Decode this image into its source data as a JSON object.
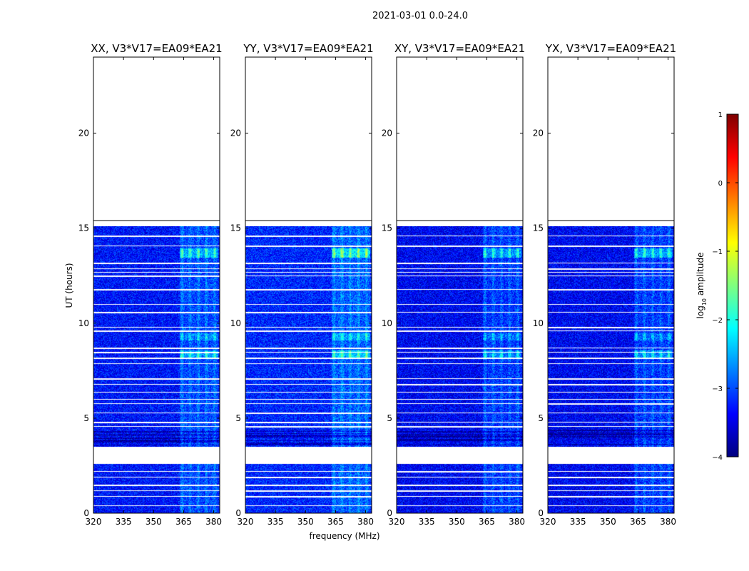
{
  "figure": {
    "suptitle": "2021-03-01 0.0-24.0",
    "xlabel": "frequency (MHz)",
    "ylabel": "UT (hours)"
  },
  "colorbar": {
    "label": "log",
    "label_sub": "10",
    "label_rest": " amplitude",
    "ticks": [
      1,
      0,
      -1,
      -2,
      -3,
      -4
    ],
    "tick_labels": [
      "1",
      "0",
      "−1",
      "−2",
      "−3",
      "−4"
    ],
    "range": [
      -4,
      1
    ],
    "colormap": "jet",
    "colors": [
      "#00007f",
      "#0000ff",
      "#007fff",
      "#00ffff",
      "#7fff7f",
      "#ffff00",
      "#ff7f00",
      "#ff0000",
      "#7f0000"
    ]
  },
  "chart_data": [
    {
      "type": "heatmap",
      "title": "XX, V3*V17=EA09*EA21",
      "xlabel": "frequency (MHz)",
      "ylabel": "UT (hours)",
      "xlim": [
        320,
        383
      ],
      "ylim": [
        0,
        24
      ],
      "xticks": [
        320,
        335,
        350,
        365,
        380
      ],
      "yticks": [
        0,
        5,
        10,
        15,
        20
      ],
      "data_hours": [
        [
          0,
          2.6
        ],
        [
          3.5,
          15.1
        ]
      ],
      "flagged_rows_hours": [
        0.4,
        0.9,
        1.2,
        1.5,
        1.9,
        2.2,
        3.3,
        4.6,
        4.8,
        5.3,
        5.8,
        6.0,
        6.4,
        6.8,
        7.1,
        7.9,
        8.2,
        8.5,
        8.7,
        9.6,
        9.8,
        10.6,
        11.0,
        11.8,
        12.5,
        12.7,
        12.9,
        13.2,
        14.1,
        14.6
      ],
      "rfi_band_mhz": [
        363,
        382
      ],
      "rfi_peak_log_amplitude": -1.5,
      "background_log_amplitude": -3.3
    },
    {
      "type": "heatmap",
      "title": "YY, V3*V17=EA09*EA21",
      "xlabel": "frequency (MHz)",
      "ylabel": "UT (hours)",
      "xlim": [
        320,
        383
      ],
      "ylim": [
        0,
        24
      ],
      "xticks": [
        320,
        335,
        350,
        365,
        380
      ],
      "yticks": [
        0,
        5,
        10,
        15,
        20
      ],
      "data_hours": [
        [
          0,
          2.6
        ],
        [
          3.5,
          15.1
        ]
      ],
      "flagged_rows_hours": [
        0.4,
        0.9,
        1.2,
        1.5,
        1.9,
        2.2,
        3.3,
        4.6,
        4.8,
        5.3,
        5.8,
        6.0,
        6.4,
        6.8,
        7.1,
        7.9,
        8.2,
        8.5,
        8.7,
        9.6,
        9.8,
        10.6,
        11.0,
        11.8,
        12.5,
        12.7,
        12.9,
        13.2,
        14.1,
        14.6
      ],
      "rfi_band_mhz": [
        363,
        382
      ],
      "rfi_peak_log_amplitude": -1.1,
      "background_log_amplitude": -3.2
    },
    {
      "type": "heatmap",
      "title": "XY, V3*V17=EA09*EA21",
      "xlabel": "frequency (MHz)",
      "ylabel": "UT (hours)",
      "xlim": [
        320,
        383
      ],
      "ylim": [
        0,
        24
      ],
      "xticks": [
        320,
        335,
        350,
        365,
        380
      ],
      "yticks": [
        0,
        5,
        10,
        15,
        20
      ],
      "data_hours": [
        [
          0,
          2.6
        ],
        [
          3.5,
          15.1
        ]
      ],
      "flagged_rows_hours": [
        0.4,
        0.9,
        1.2,
        1.5,
        1.9,
        2.2,
        3.3,
        4.6,
        4.8,
        5.3,
        5.8,
        6.0,
        6.4,
        6.8,
        7.1,
        7.9,
        8.2,
        8.5,
        8.7,
        9.6,
        9.8,
        10.6,
        11.0,
        11.8,
        12.5,
        12.7,
        12.9,
        13.2,
        14.1,
        14.6
      ],
      "rfi_band_mhz": [
        363,
        382
      ],
      "rfi_peak_log_amplitude": -1.7,
      "background_log_amplitude": -3.4
    },
    {
      "type": "heatmap",
      "title": "YX, V3*V17=EA09*EA21",
      "xlabel": "frequency (MHz)",
      "ylabel": "UT (hours)",
      "xlim": [
        320,
        383
      ],
      "ylim": [
        0,
        24
      ],
      "xticks": [
        320,
        335,
        350,
        365,
        380
      ],
      "yticks": [
        0,
        5,
        10,
        15,
        20
      ],
      "data_hours": [
        [
          0,
          2.6
        ],
        [
          3.5,
          15.1
        ]
      ],
      "flagged_rows_hours": [
        0.4,
        0.9,
        1.2,
        1.5,
        1.9,
        2.2,
        3.3,
        4.6,
        4.8,
        5.3,
        5.8,
        6.0,
        6.4,
        6.8,
        7.1,
        7.9,
        8.2,
        8.5,
        8.7,
        9.6,
        9.8,
        10.6,
        11.0,
        11.8,
        12.5,
        12.7,
        12.9,
        13.2,
        14.1,
        14.6
      ],
      "rfi_band_mhz": [
        363,
        382
      ],
      "rfi_peak_log_amplitude": -1.6,
      "background_log_amplitude": -3.4
    }
  ]
}
